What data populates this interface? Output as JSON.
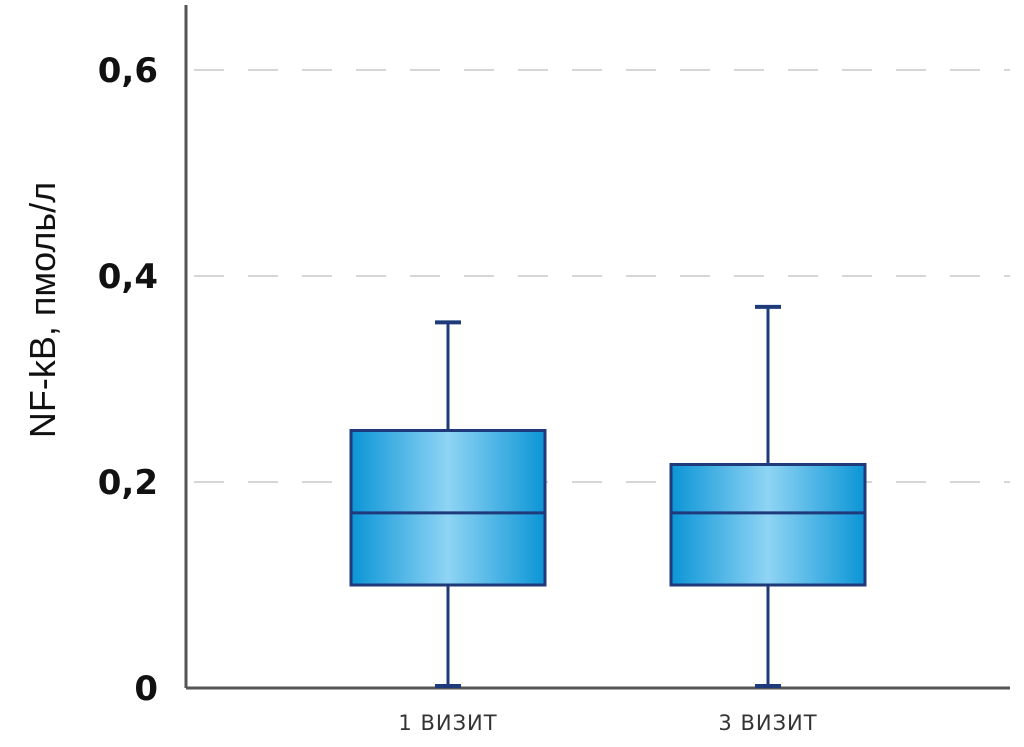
{
  "chart_data": {
    "type": "box",
    "ylabel": "NF-kB, пмоль/л",
    "ylim": [
      0,
      0.6
    ],
    "yticks": [
      {
        "value": 0,
        "label": "0"
      },
      {
        "value": 0.2,
        "label": "0,2"
      },
      {
        "value": 0.4,
        "label": "0,4"
      },
      {
        "value": 0.6,
        "label": "0,6"
      }
    ],
    "grid": true,
    "categories": [
      "1 визит",
      "3 визит"
    ],
    "boxes": [
      {
        "category": "1 визит",
        "min": 0.0,
        "q1": 0.1,
        "median": 0.17,
        "q3": 0.25,
        "max": 0.355
      },
      {
        "category": "3 визит",
        "min": 0.0,
        "q1": 0.1,
        "median": 0.17,
        "q3": 0.217,
        "max": 0.37
      }
    ],
    "colors": {
      "box_fill_edge": "#0b95d6",
      "box_fill_center": "#8fd4f4",
      "outline": "#1f3a7a",
      "grid": "#c8c8c8",
      "axis": "#555555"
    }
  }
}
